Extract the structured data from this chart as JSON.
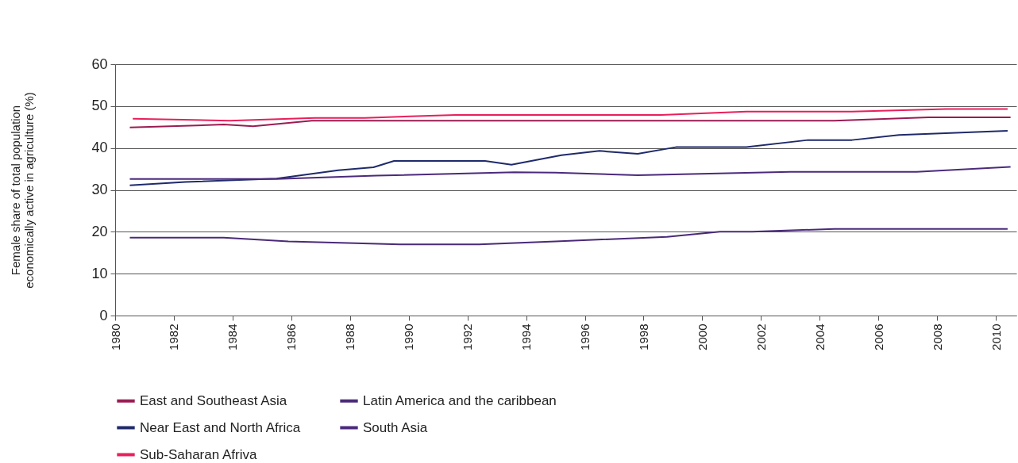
{
  "chart_data": {
    "type": "line",
    "ylabel": "Female share of total population economically active in agriculture (%)",
    "xlim": [
      1980,
      2010.7
    ],
    "xticks": [
      1980,
      1982,
      1984,
      1986,
      1988,
      1990,
      1992,
      1994,
      1996,
      1998,
      2000,
      2002,
      2004,
      2006,
      2008,
      2010
    ],
    "ylim": [
      0,
      60
    ],
    "yticks": [
      0,
      10,
      20,
      30,
      40,
      50,
      60
    ],
    "grid": "y",
    "legend": "bottom",
    "line_style": "solid",
    "series": [
      {
        "name": "East and Southeast Asia",
        "color": "#9b1b52",
        "x": [
          1980.5,
          1983.7,
          1984.7,
          1986.7,
          2004.5,
          2007.7,
          2010.5
        ],
        "values": [
          44.9,
          45.6,
          45.2,
          46.5,
          46.5,
          47.3,
          47.3
        ]
      },
      {
        "name": "Latin America and the caribbean",
        "color": "#4a2a78",
        "x": [
          1980.5,
          1983.7,
          1985.9,
          1989.7,
          1992.4,
          1995,
          1998.8,
          2000.6,
          2001.7,
          2004.5,
          2010.4
        ],
        "values": [
          18.6,
          18.6,
          17.7,
          17.0,
          17.0,
          17.7,
          18.8,
          20.0,
          20.0,
          20.7,
          20.7
        ]
      },
      {
        "name": "Near East and North Africa",
        "color": "#1f2a6b",
        "x": [
          1980.5,
          1982.4,
          1985.5,
          1987.6,
          1988.8,
          1989.5,
          1992.6,
          1993.5,
          1995.2,
          1996.5,
          1997.8,
          1999.1,
          2001.5,
          2003.6,
          2005.1,
          2006.7,
          2010.4
        ],
        "values": [
          31.1,
          31.9,
          32.7,
          34.7,
          35.4,
          36.9,
          36.9,
          36.0,
          38.3,
          39.3,
          38.6,
          40.2,
          40.2,
          41.9,
          41.9,
          43.1,
          44.1
        ]
      },
      {
        "name": "South Asia",
        "color": "#4b2a7c",
        "x": [
          1980.5,
          1985.5,
          1988.9,
          1993.6,
          1995,
          1997.8,
          2003,
          2007.3,
          2010.5
        ],
        "values": [
          32.6,
          32.6,
          33.4,
          34.2,
          34.1,
          33.5,
          34.3,
          34.3,
          35.5
        ]
      },
      {
        "name": "Sub-Saharan Afriva",
        "color": "#ea1e5a",
        "x": [
          1980.6,
          1983.9,
          1986.8,
          1988.5,
          1991.6,
          1998.6,
          2001.5,
          2005.1,
          2008.3,
          2010.4
        ],
        "values": [
          47.0,
          46.5,
          47.2,
          47.2,
          47.9,
          47.9,
          48.7,
          48.7,
          49.3,
          49.3
        ]
      }
    ]
  }
}
